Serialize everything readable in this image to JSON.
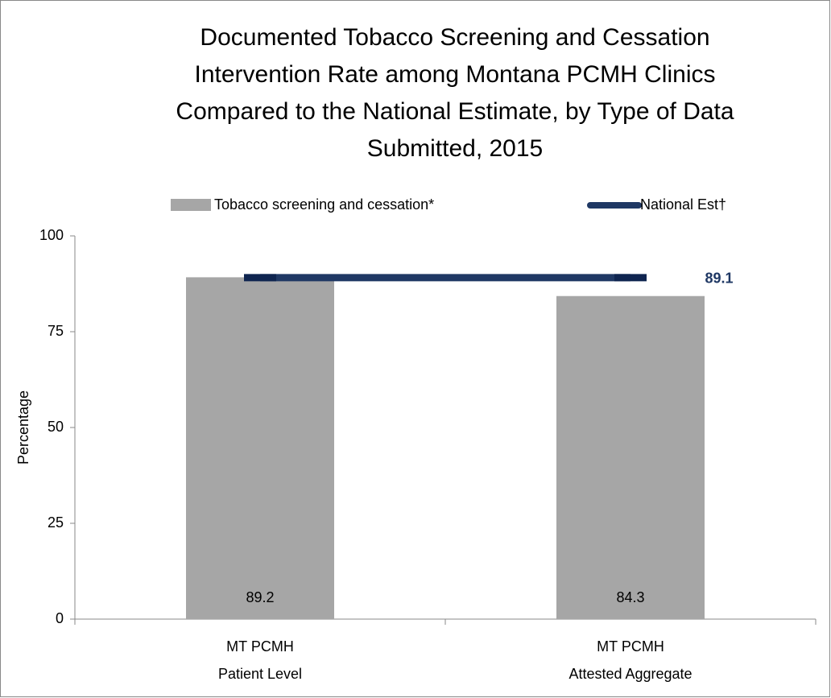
{
  "chart_data": {
    "type": "bar",
    "title": [
      "Documented Tobacco Screening and Cessation",
      "Intervention Rate among Montana PCMH Clinics",
      "Compared to the National Estimate, by Type of Data",
      "Submitted, 2015"
    ],
    "y_label": "Percentage",
    "categories": [
      [
        "MT PCMH",
        "Patient Level"
      ],
      [
        "MT PCMH",
        "Attested Aggregate"
      ]
    ],
    "series": [
      {
        "name": "Tobacco screening and cessation*",
        "type": "bar",
        "color": "#a6a6a6",
        "values": [
          89.2,
          84.3
        ]
      },
      {
        "name": "National Est†",
        "type": "line",
        "color": "#1f3864",
        "values": [
          89.1,
          89.1
        ]
      }
    ],
    "ylim": [
      0,
      100
    ],
    "yticks": [
      0,
      25,
      50,
      75,
      100
    ],
    "legend": "top"
  }
}
